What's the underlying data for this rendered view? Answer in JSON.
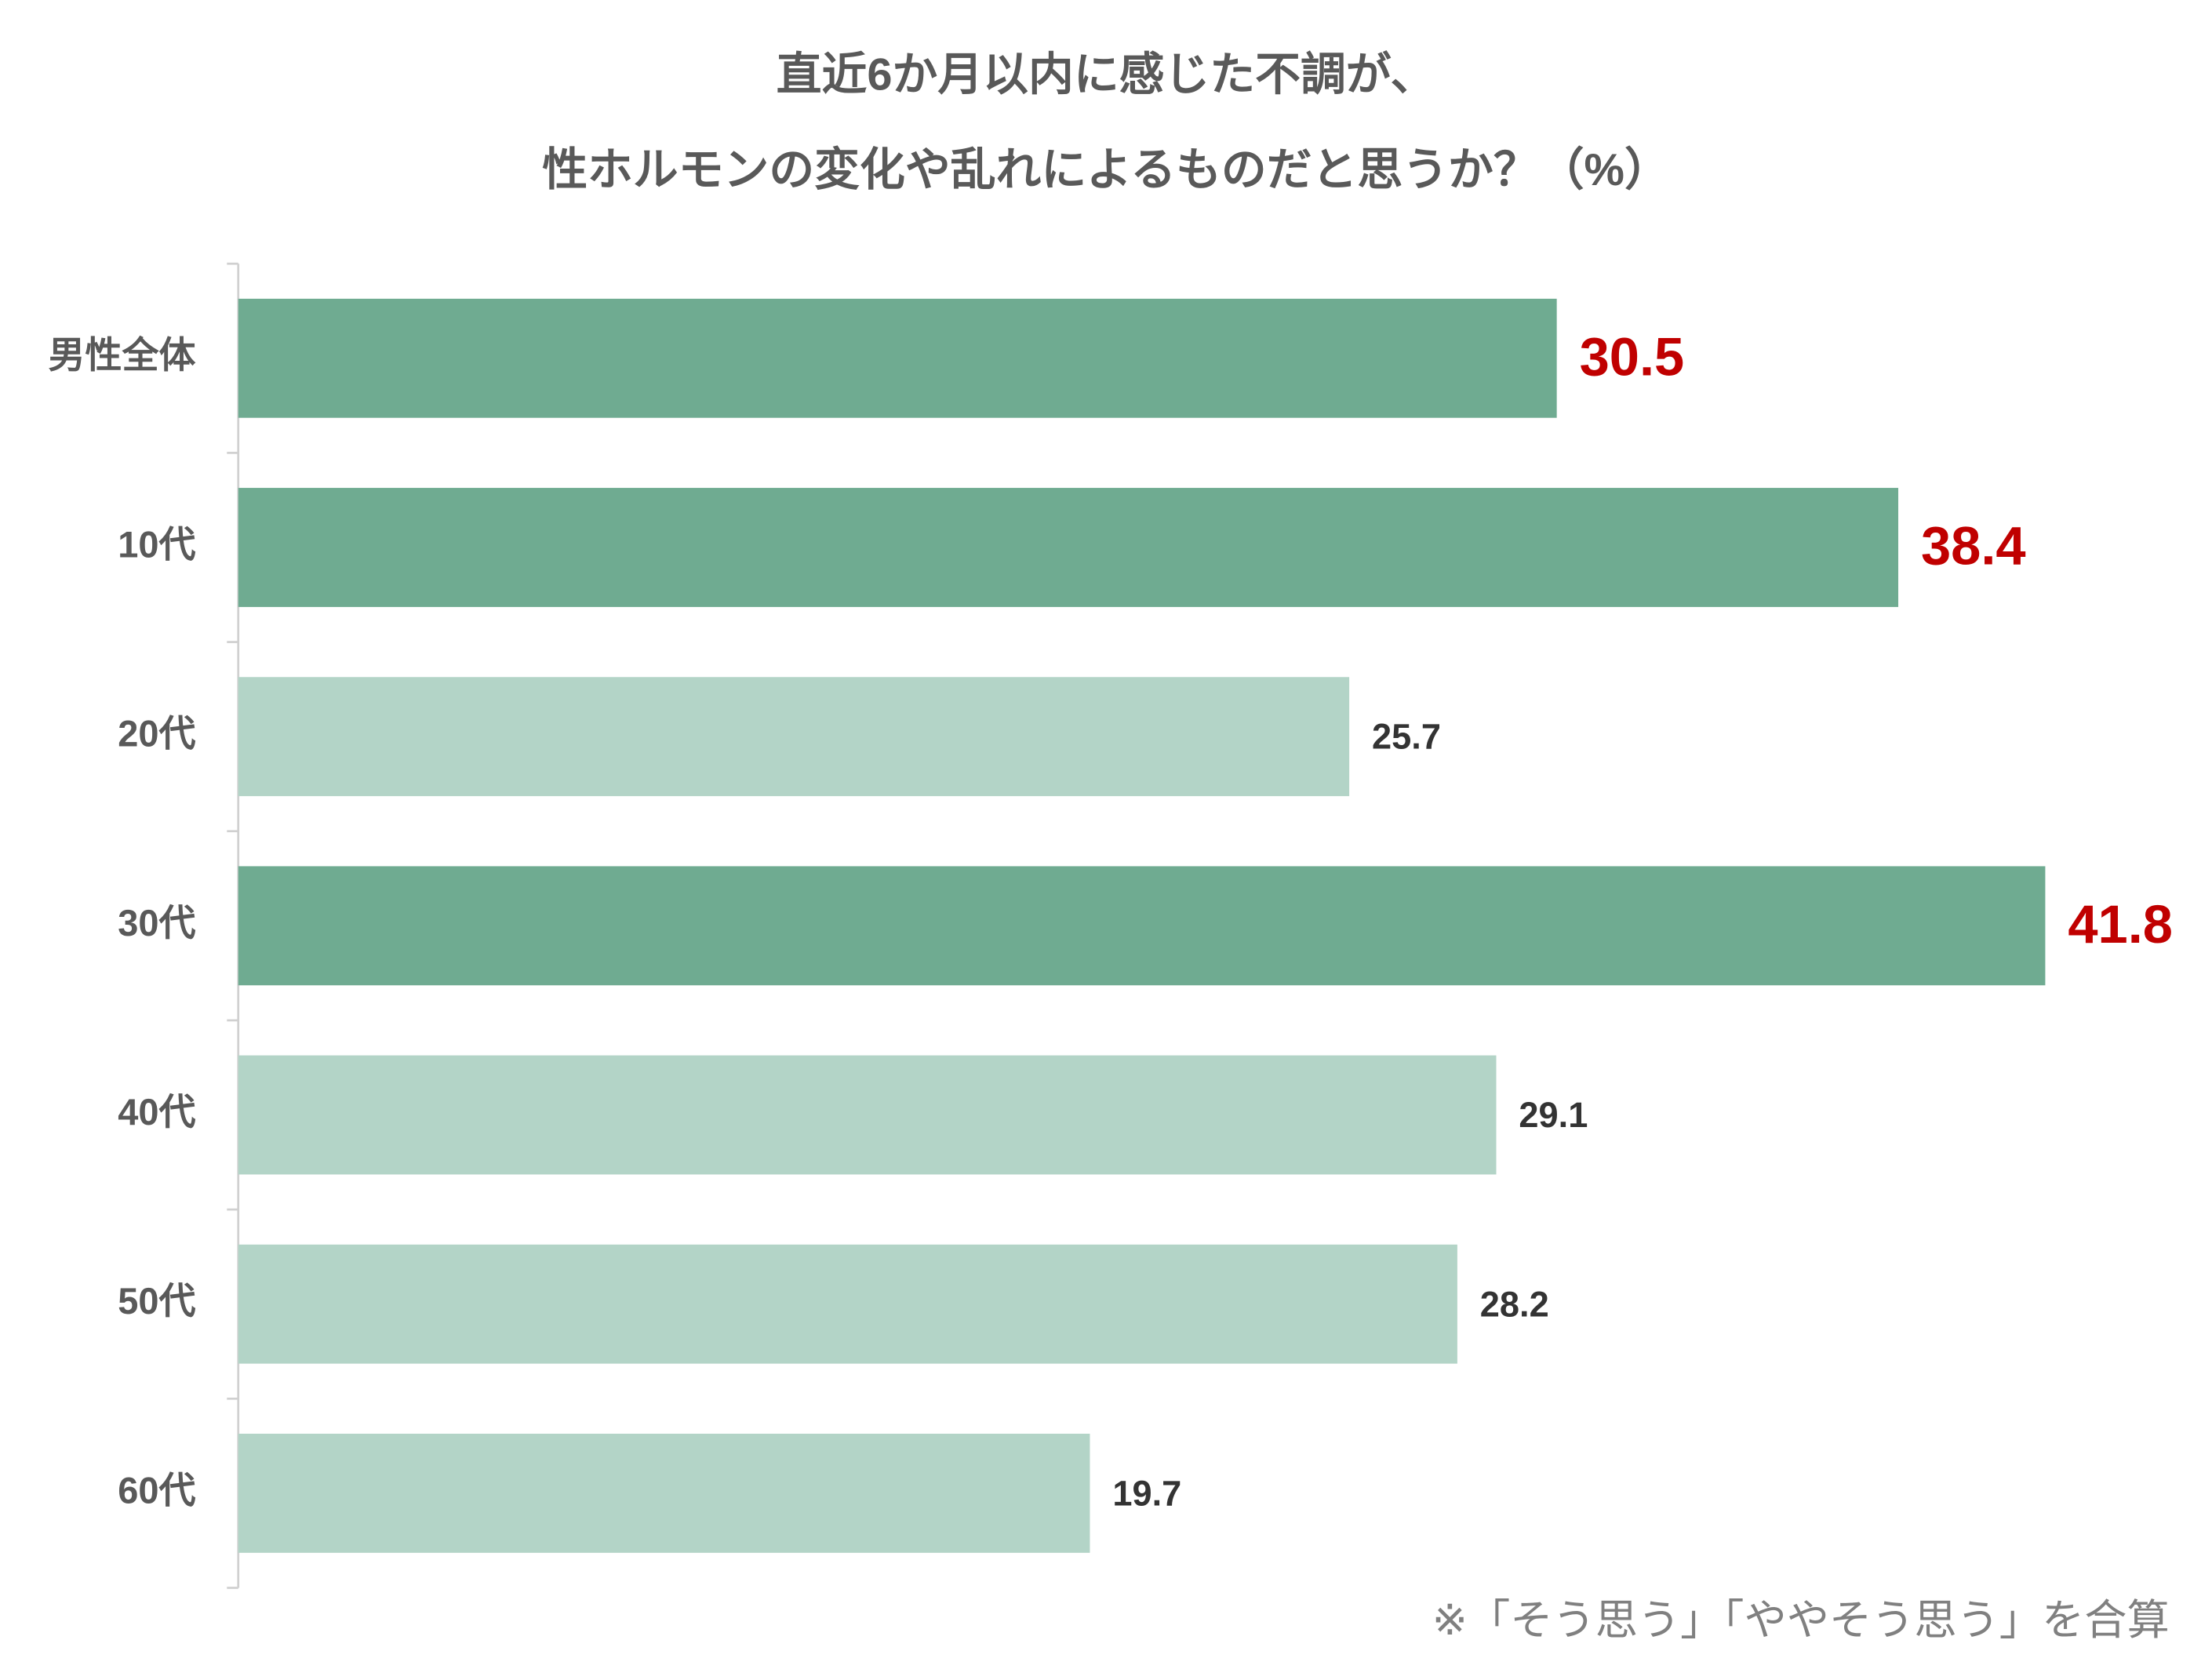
{
  "chart_data": {
    "type": "hbar",
    "title": [
      "直近6か月以内に感じた不調が、",
      "性ホルモンの変化や乱れによるものだと思うか？（%）"
    ],
    "categories": [
      "男性全体",
      "10代",
      "20代",
      "30代",
      "40代",
      "50代",
      "60代"
    ],
    "values": [
      30.5,
      38.4,
      25.7,
      41.8,
      29.1,
      28.2,
      19.7
    ],
    "colors": [
      "#6fab91",
      "#6fab91",
      "#b3d4c7",
      "#6fab91",
      "#b3d4c7",
      "#b3d4c7",
      "#b3d4c7"
    ],
    "value_label_colors": [
      "#c00000",
      "#c00000",
      "#333333",
      "#c00000",
      "#333333",
      "#333333",
      "#333333"
    ],
    "xlim": [
      0,
      45
    ],
    "note": "※「そう思う」「ややそう思う」を合算"
  }
}
